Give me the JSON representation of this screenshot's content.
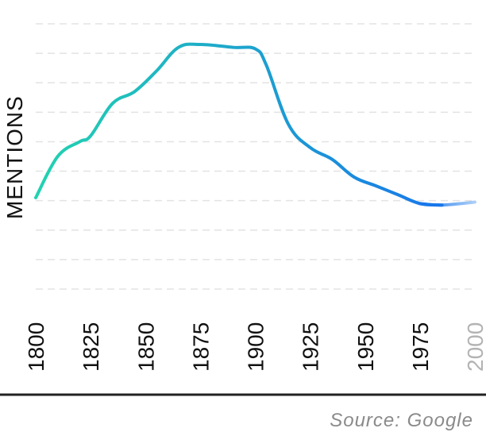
{
  "chart_data": {
    "type": "line",
    "title": "",
    "xlabel": "",
    "ylabel": "MENTIONS",
    "x": [
      1800,
      1810,
      1820,
      1825,
      1835,
      1845,
      1855,
      1865,
      1875,
      1890,
      1900,
      1905,
      1915,
      1925,
      1935,
      1945,
      1955,
      1965,
      1975,
      1985,
      2000
    ],
    "y": [
      3.1,
      4.5,
      5.0,
      5.2,
      6.3,
      6.7,
      7.4,
      8.2,
      8.3,
      8.2,
      8.15,
      7.6,
      5.6,
      4.8,
      4.4,
      3.8,
      3.5,
      3.2,
      2.9,
      2.85,
      2.95
    ],
    "xlim": [
      1800,
      2000
    ],
    "ylim": [
      0,
      9
    ],
    "x_ticks": [
      "1800",
      "1825",
      "1850",
      "1875",
      "1900",
      "1925",
      "1950",
      "1975",
      "2000"
    ],
    "grid": true,
    "grid_style": "dashed",
    "legend": "none",
    "colors": {
      "line_start": "#22d3b0",
      "line_end": "#1877ea",
      "grid": "#e3e3e3",
      "axis": "#222222",
      "muted_tick": "#b3b3b3"
    }
  },
  "source": "Source: Google"
}
